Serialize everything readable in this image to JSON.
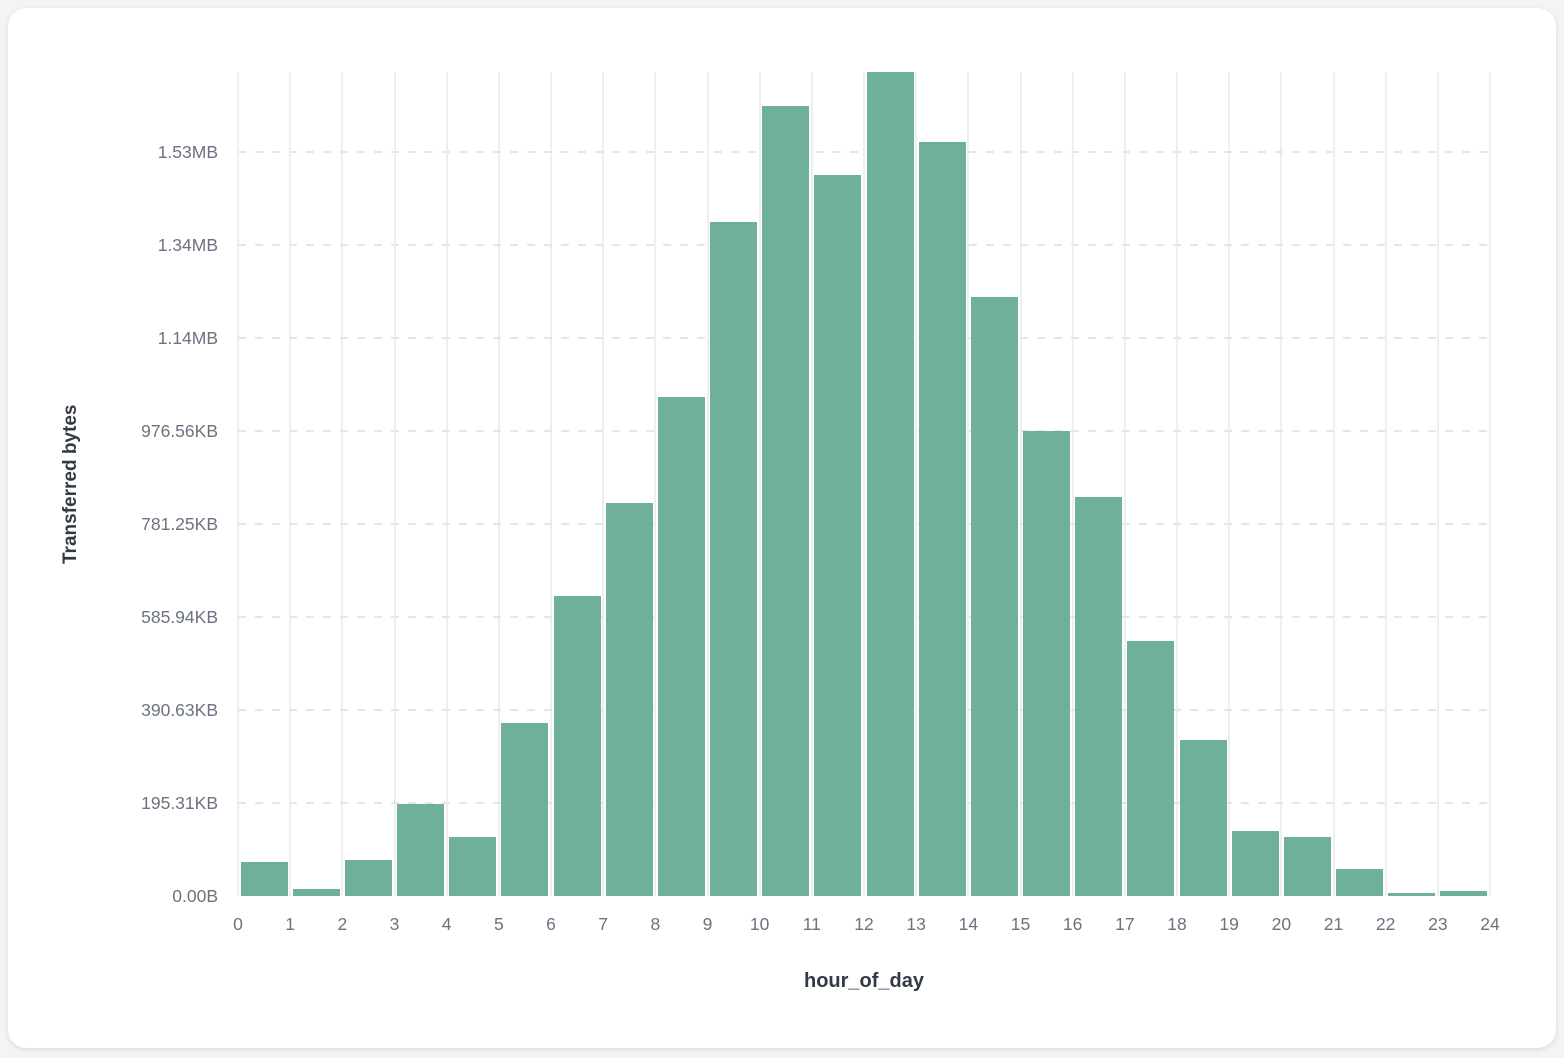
{
  "page": {
    "background_color": "#f2f4f6",
    "card_color": "#ffffff"
  },
  "chart_data": {
    "type": "bar",
    "subtype": "histogram",
    "title": "",
    "xlabel": "hour_of_day",
    "ylabel": "Transferred bytes",
    "bar_color": "#6FB09A",
    "grid": true,
    "legend": false,
    "unit": "bytes",
    "x_bins": [
      0,
      1,
      2,
      3,
      4,
      5,
      6,
      7,
      8,
      9,
      10,
      11,
      12,
      13,
      14,
      15,
      16,
      17,
      18,
      19,
      20,
      21,
      22,
      23
    ],
    "values": [
      73000,
      15000,
      77000,
      198000,
      127000,
      372000,
      645000,
      845000,
      1073000,
      1450000,
      1699000,
      1551000,
      1772000,
      1622000,
      1288000,
      1000000,
      858000,
      548000,
      335000,
      140000,
      127000,
      58000,
      6500,
      11000
    ],
    "x_tick_labels": [
      "0",
      "1",
      "2",
      "3",
      "4",
      "5",
      "6",
      "7",
      "8",
      "9",
      "10",
      "11",
      "12",
      "13",
      "14",
      "15",
      "16",
      "17",
      "18",
      "19",
      "20",
      "21",
      "22",
      "23",
      "24"
    ],
    "y_ticks": [
      {
        "label": "0.00B",
        "value": 0
      },
      {
        "label": "195.31KB",
        "value": 200000
      },
      {
        "label": "390.63KB",
        "value": 400000
      },
      {
        "label": "585.94KB",
        "value": 600000
      },
      {
        "label": "781.25KB",
        "value": 800000
      },
      {
        "label": "976.56KB",
        "value": 1000000
      },
      {
        "label": "1.14MB",
        "value": 1200000
      },
      {
        "label": "1.34MB",
        "value": 1400000
      },
      {
        "label": "1.53MB",
        "value": 1600000
      }
    ],
    "xlim": [
      0,
      24
    ],
    "ylim": [
      0,
      1772000
    ]
  }
}
